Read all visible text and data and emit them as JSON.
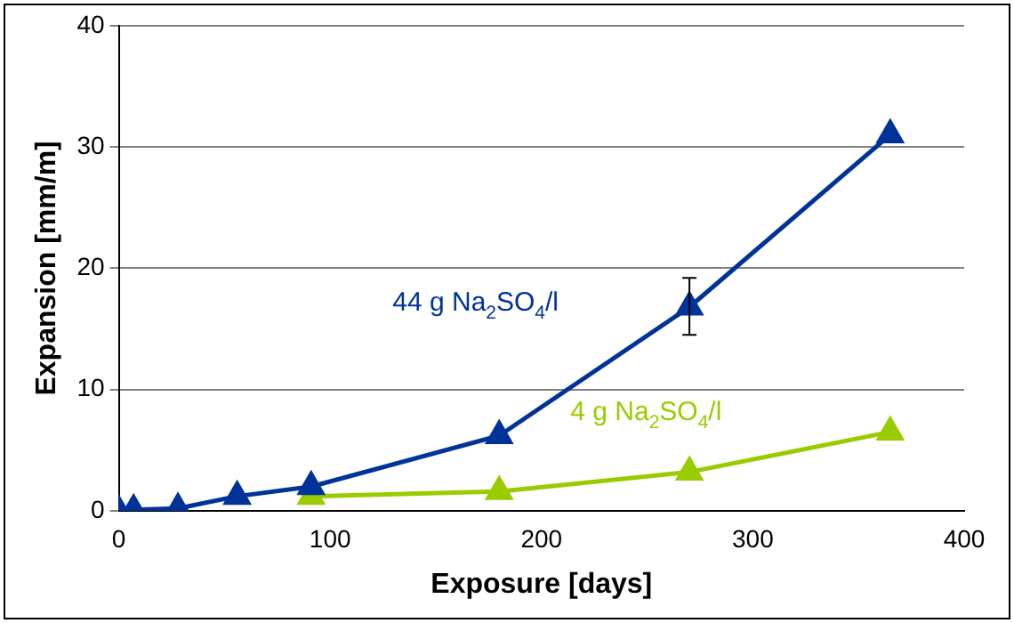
{
  "chart_data": {
    "type": "line",
    "xlabel": "Exposure [days]",
    "ylabel": "Expansion [mm/m]",
    "xlim": [
      0,
      400
    ],
    "xticks": [
      0,
      100,
      200,
      300,
      400
    ],
    "ylim": [
      0,
      40
    ],
    "yticks": [
      0,
      10,
      20,
      30,
      40
    ],
    "grid": "y",
    "legend": false,
    "marker": "triangle",
    "line_style": "solid",
    "series": [
      {
        "name": "44 g Na$_{2}$SO$_{4}$/l",
        "color": "#003399",
        "x": [
          0,
          7,
          28,
          56,
          91,
          180,
          270,
          365
        ],
        "values": [
          0,
          0.1,
          0.2,
          1.2,
          2.0,
          6.2,
          16.8,
          31.0
        ],
        "errors": [
          null,
          null,
          null,
          null,
          null,
          null,
          [
            14.5,
            19.2
          ],
          null
        ]
      },
      {
        "name": "4 g Na$_{2}$SO$_{4}$/l",
        "color": "#99cc00",
        "x": [
          91,
          180,
          270,
          365
        ],
        "values": [
          1.2,
          1.6,
          3.2,
          6.5
        ]
      }
    ]
  }
}
